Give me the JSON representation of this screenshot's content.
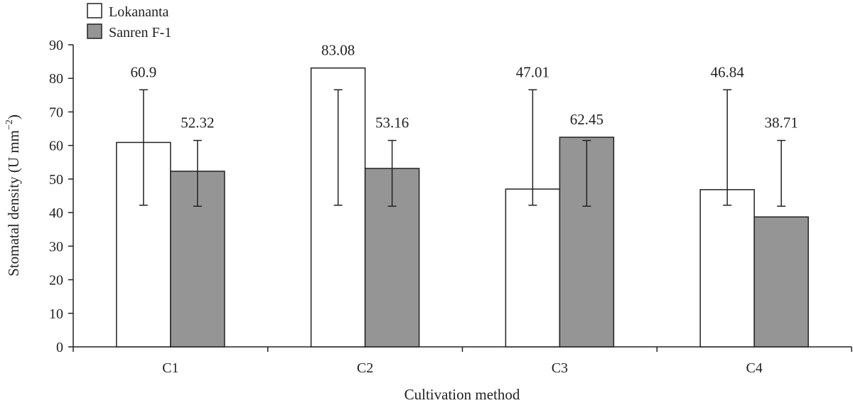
{
  "chart_data": {
    "type": "bar",
    "xlabel": "Cultivation method",
    "ylabel": "Stomatal density (U mm",
    "ylabel_sup": "−2",
    "ylabel_close": ")",
    "ylim": [
      0,
      90
    ],
    "yticks": [
      "0",
      "10",
      "20",
      "30",
      "40",
      "50",
      "60",
      "70",
      "80",
      "90"
    ],
    "categories": [
      "C1",
      "C2",
      "C3",
      "C4"
    ],
    "legend_position": "top-left",
    "grid": false,
    "series": [
      {
        "name": "Lokananta",
        "color": "#ffffff",
        "values": [
          60.9,
          83.08,
          47.01,
          46.84
        ],
        "labels": [
          "60.9",
          "83.08",
          "47.01",
          "46.84"
        ],
        "error_low": [
          42.2,
          42.2,
          42.2,
          42.2
        ],
        "error_high": [
          76.6,
          76.6,
          76.6,
          76.6
        ]
      },
      {
        "name": "Sanren F-1",
        "color": "#959595",
        "values": [
          52.32,
          53.16,
          62.45,
          38.71
        ],
        "labels": [
          "52.32",
          "53.16",
          "62.45",
          "38.71"
        ],
        "error_low": [
          41.9,
          41.9,
          41.9,
          41.9
        ],
        "error_high": [
          61.5,
          61.5,
          61.5,
          61.5
        ]
      }
    ]
  }
}
